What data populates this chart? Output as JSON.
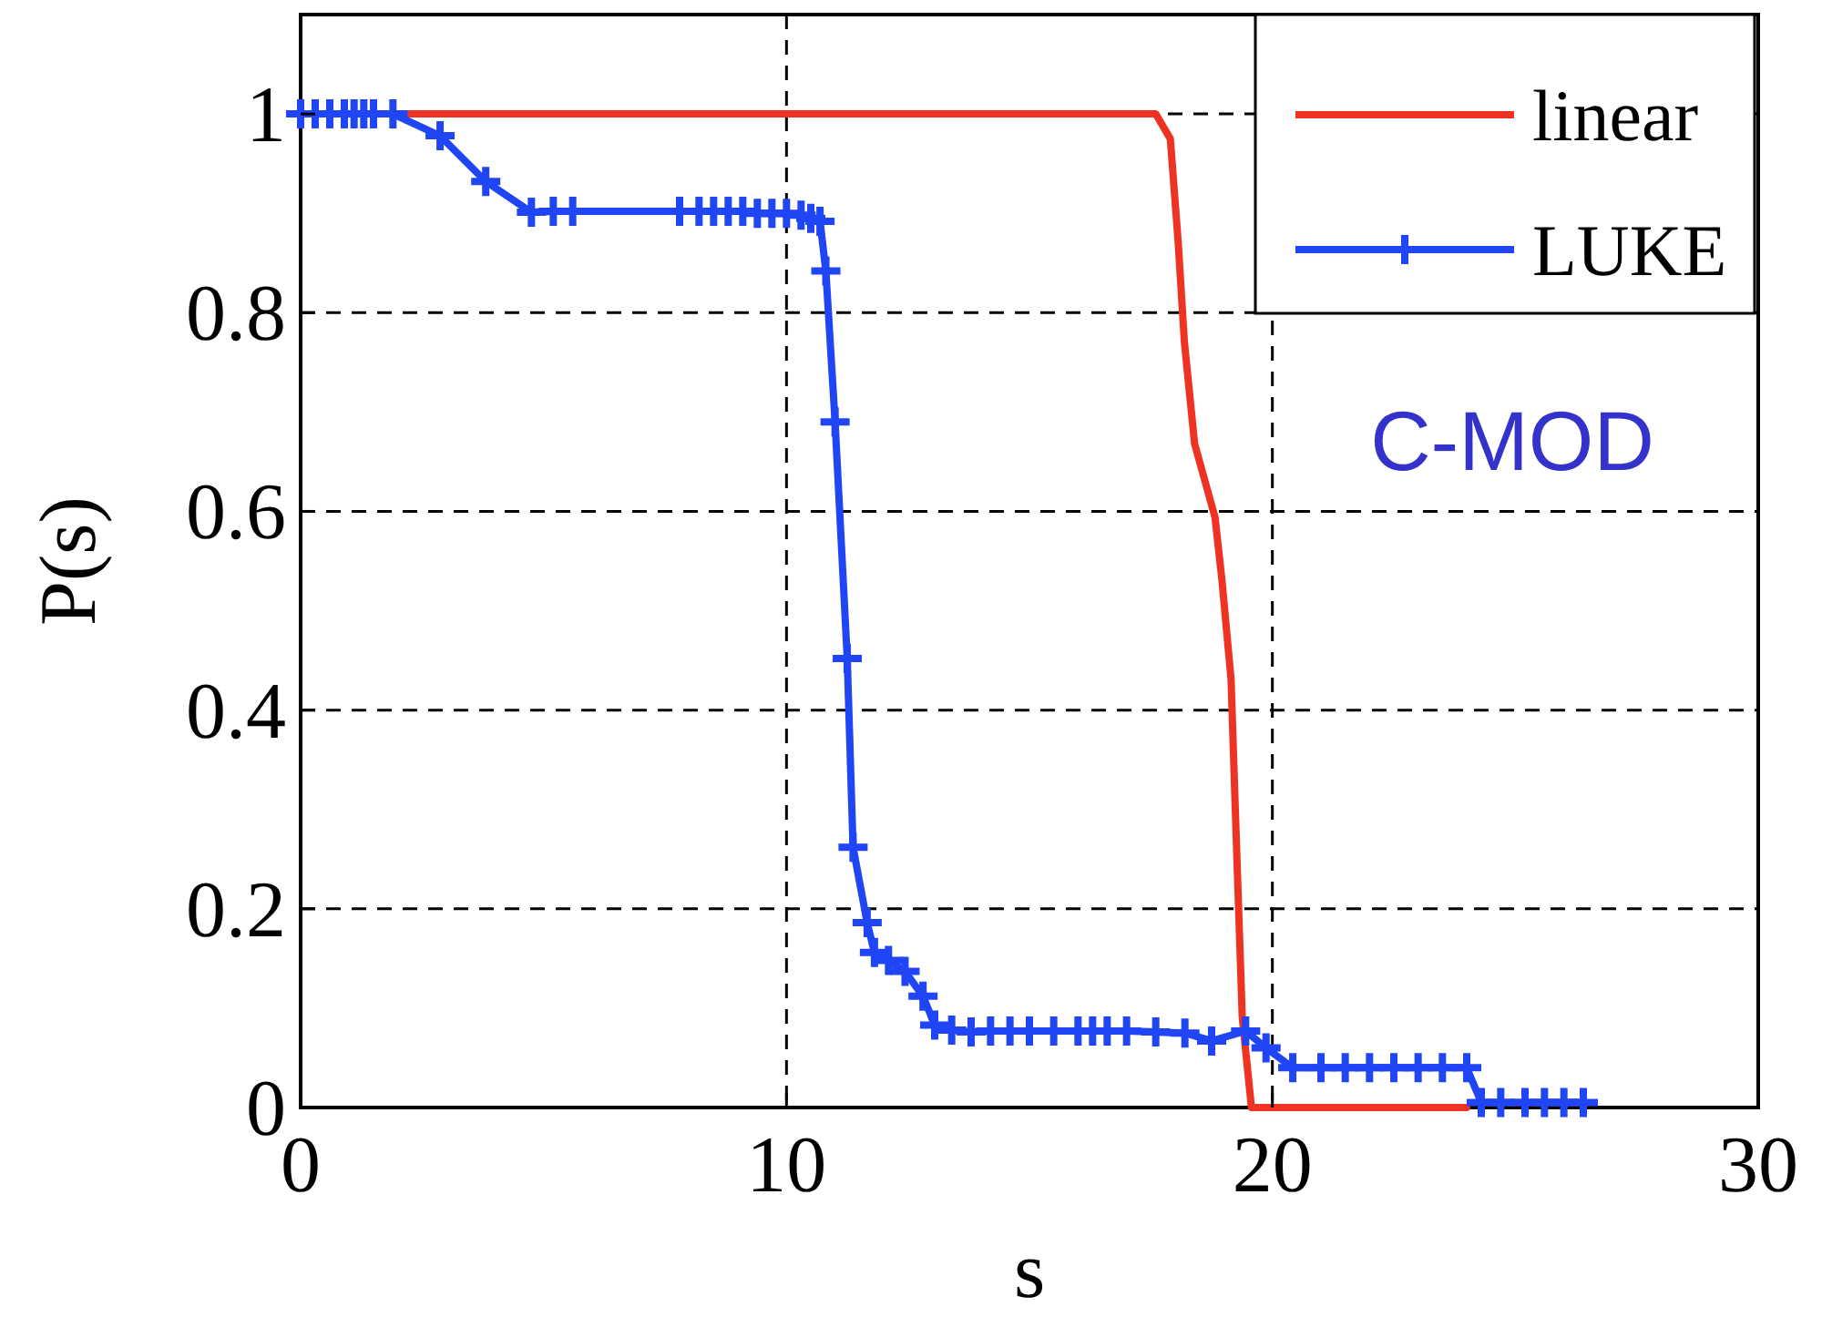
{
  "chart_data": {
    "type": "line",
    "xlabel": "s",
    "ylabel": "P(s)",
    "xlim": [
      0,
      30
    ],
    "ylim": [
      0,
      1.1
    ],
    "xticks": [
      0,
      10,
      20,
      30
    ],
    "yticks": [
      0,
      0.2,
      0.4,
      0.6,
      0.8,
      1
    ],
    "grid": true,
    "legend": "top right",
    "annotations": [
      "C-MOD"
    ],
    "series": [
      {
        "name": "linear",
        "color": "#ee3322",
        "marker": "none",
        "x": [
          0,
          17.6,
          17.9,
          18.06,
          18.19,
          18.4,
          18.82,
          18.96,
          19.15,
          19.24,
          19.38,
          19.57,
          24
        ],
        "values": [
          1,
          1,
          0.975,
          0.872,
          0.77,
          0.668,
          0.594,
          0.532,
          0.431,
          0.296,
          0.091,
          0,
          0
        ]
      },
      {
        "name": "LUKE",
        "color": "#1f45f5",
        "marker": "cross",
        "x": [
          0,
          0.3,
          0.6,
          0.9,
          1.1,
          1.3,
          1.5,
          1.9,
          2.87,
          3.81,
          4.75,
          5.2,
          5.6,
          7.8,
          8.2,
          8.5,
          8.8,
          9.1,
          9.4,
          9.7,
          10,
          10.3,
          10.5,
          10.69,
          10.81,
          11.0,
          11.25,
          11.37,
          11.66,
          11.81,
          12.1,
          12.44,
          12.81,
          13.05,
          13.4,
          13.8,
          14.2,
          14.6,
          15,
          15.5,
          16,
          16.3,
          16.6,
          17,
          17.6,
          18.2,
          18.75,
          19.45,
          19.87,
          20.42,
          21,
          21.5,
          22,
          22.5,
          23,
          23.5,
          24,
          24.3,
          24.7,
          25.2,
          25.6,
          26,
          26.4
        ],
        "values": [
          1,
          1,
          1,
          1,
          1,
          1,
          1,
          1,
          0.978,
          0.932,
          0.901,
          0.902,
          0.902,
          0.902,
          0.902,
          0.902,
          0.902,
          0.902,
          0.9,
          0.9,
          0.9,
          0.898,
          0.895,
          0.892,
          0.842,
          0.69,
          0.452,
          0.262,
          0.186,
          0.156,
          0.148,
          0.137,
          0.112,
          0.083,
          0.078,
          0.076,
          0.077,
          0.077,
          0.077,
          0.077,
          0.077,
          0.077,
          0.077,
          0.077,
          0.076,
          0.075,
          0.067,
          0.077,
          0.06,
          0.04,
          0.04,
          0.04,
          0.04,
          0.04,
          0.04,
          0.04,
          0.04,
          0.005,
          0.005,
          0.005,
          0.005,
          0.005,
          0.005
        ]
      }
    ]
  }
}
